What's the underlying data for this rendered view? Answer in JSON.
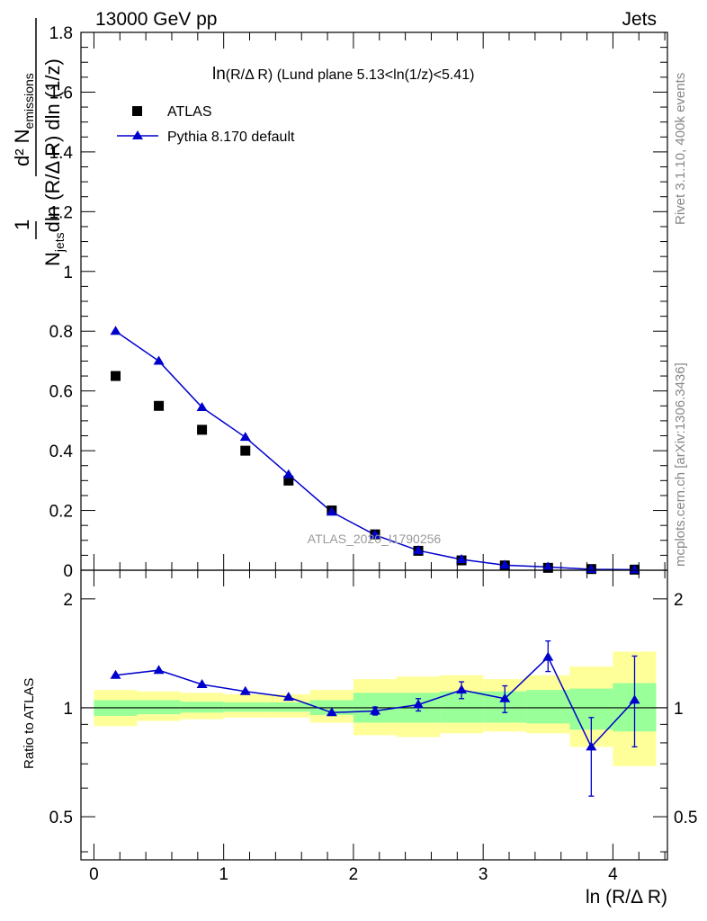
{
  "header": {
    "left": "13000 GeV pp",
    "right": "Jets"
  },
  "plot_title": {
    "prefix": "ln",
    "body": "(R/Δ R) (Lund plane 5.13<ln(1/z)<5.41)"
  },
  "side_labels": {
    "rivet": "Rivet 3.1.10,  400k events",
    "mcplots": "mcplots.cern.ch [arXiv:1306.3436]"
  },
  "watermark": "ATLAS_2020_I1790256",
  "axes": {
    "xlabel": "ln (R/Δ R)",
    "ylabel_main": "1/N_jets d²N_emissions / dln(R/ΔR) dln(1/z)",
    "ylabel_ratio": "Ratio to ATLAS"
  },
  "colors": {
    "data": "#000000",
    "mc": "#0000cc",
    "band_inner": "#99ff99",
    "band_outer": "#ffff99"
  },
  "chart_data": [
    {
      "type": "scatter",
      "panel": "main",
      "x_edges": [
        0.0,
        0.333,
        0.667,
        1.0,
        1.333,
        1.667,
        2.0,
        2.333,
        2.667,
        3.0,
        3.333,
        3.667,
        4.0,
        4.333
      ],
      "x": [
        0.167,
        0.5,
        0.833,
        1.167,
        1.5,
        1.833,
        2.167,
        2.5,
        2.833,
        3.167,
        3.5,
        3.833,
        4.167
      ],
      "xlim": [
        -0.1,
        4.42
      ],
      "ylim": [
        0,
        1.8
      ],
      "yticks": [
        0,
        0.2,
        0.4,
        0.6,
        0.8,
        1,
        1.2,
        1.4,
        1.6,
        1.8
      ],
      "series": [
        {
          "name": "ATLAS",
          "marker": "square",
          "values": [
            0.65,
            0.55,
            0.47,
            0.4,
            0.3,
            0.2,
            0.12,
            0.065,
            0.033,
            0.016,
            0.008,
            0.004,
            0.002
          ]
        },
        {
          "name": "Pythia 8.170 default",
          "marker": "triangle",
          "line": true,
          "values": [
            0.8,
            0.7,
            0.545,
            0.445,
            0.32,
            0.195,
            0.118,
            0.066,
            0.036,
            0.017,
            0.011,
            0.003,
            0.002
          ]
        }
      ]
    },
    {
      "type": "line",
      "panel": "ratio",
      "ylabel": "Ratio to ATLAS",
      "xlabel": "ln (R/Δ R)",
      "ylim": [
        0.38,
        2.4
      ],
      "log_y": true,
      "yticks": [
        0.5,
        1,
        2
      ],
      "xticks": [
        0,
        1,
        2,
        3,
        4
      ],
      "reference": 1,
      "series": [
        {
          "name": "Pythia 8.170 default",
          "values": [
            1.23,
            1.27,
            1.16,
            1.11,
            1.07,
            0.97,
            0.98,
            1.02,
            1.12,
            1.06,
            1.38,
            0.78,
            1.05
          ],
          "err_low": [
            0,
            0,
            0,
            0,
            0,
            0,
            0.025,
            0.04,
            0.06,
            0.09,
            0.12,
            0.21,
            0.27
          ],
          "err_high": [
            0,
            0,
            0,
            0,
            0,
            0,
            0.025,
            0.04,
            0.06,
            0.09,
            0.15,
            0.16,
            0.34
          ]
        }
      ],
      "band_inner": {
        "lo": [
          0.95,
          0.96,
          0.97,
          0.975,
          0.975,
          0.955,
          0.91,
          0.91,
          0.91,
          0.91,
          0.905,
          0.87,
          0.86
        ],
        "hi": [
          1.05,
          1.05,
          1.04,
          1.035,
          1.035,
          1.05,
          1.1,
          1.1,
          1.11,
          1.11,
          1.12,
          1.13,
          1.17
        ]
      },
      "band_outer": {
        "lo": [
          0.89,
          0.92,
          0.93,
          0.94,
          0.94,
          0.91,
          0.84,
          0.83,
          0.85,
          0.86,
          0.85,
          0.78,
          0.69
        ],
        "hi": [
          1.12,
          1.11,
          1.1,
          1.09,
          1.09,
          1.12,
          1.2,
          1.22,
          1.23,
          1.2,
          1.23,
          1.3,
          1.43
        ]
      }
    }
  ]
}
